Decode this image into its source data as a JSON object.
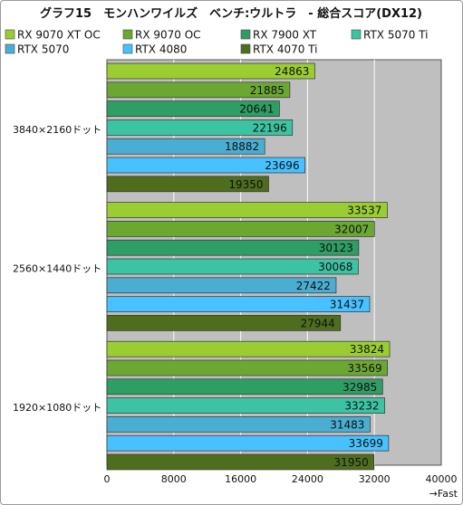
{
  "chart_data": {
    "type": "bar",
    "orientation": "horizontal",
    "title": "グラフ15　モンハンワイルズ　ベンチ:ウルトラ　- 総合スコア(DX12)",
    "xlabel": "",
    "ylabel": "",
    "xlim": [
      0,
      40000
    ],
    "x_ticks": [
      "0",
      "8000",
      "16000",
      "24000",
      "32000",
      "40000"
    ],
    "axis_note": "→Fast",
    "grid": true,
    "legend_position": "top",
    "categories": [
      "3840×2160ドット",
      "2560×1440ドット",
      "1920×1080ドット"
    ],
    "series": [
      {
        "name": "RX 9070 XT  OC",
        "color": "#9acd32",
        "values": [
          24863,
          33537,
          33824
        ]
      },
      {
        "name": "RX 9070 OC",
        "color": "#6aa832",
        "values": [
          21885,
          32007,
          33569
        ]
      },
      {
        "name": "RX 7900 XT",
        "color": "#2e9e64",
        "values": [
          20641,
          30123,
          32985
        ]
      },
      {
        "name": "RTX 5070 Ti",
        "color": "#3cc4a2",
        "values": [
          22196,
          30068,
          33232
        ]
      },
      {
        "name": "RTX 5070",
        "color": "#4aaed2",
        "values": [
          18882,
          27422,
          31483
        ]
      },
      {
        "name": "RTX 4080",
        "color": "#47c1ff",
        "values": [
          23696,
          31437,
          33699
        ]
      },
      {
        "name": "RTX 4070 Ti",
        "color": "#4e6e1e",
        "values": [
          19350,
          27944,
          31950
        ]
      }
    ]
  }
}
